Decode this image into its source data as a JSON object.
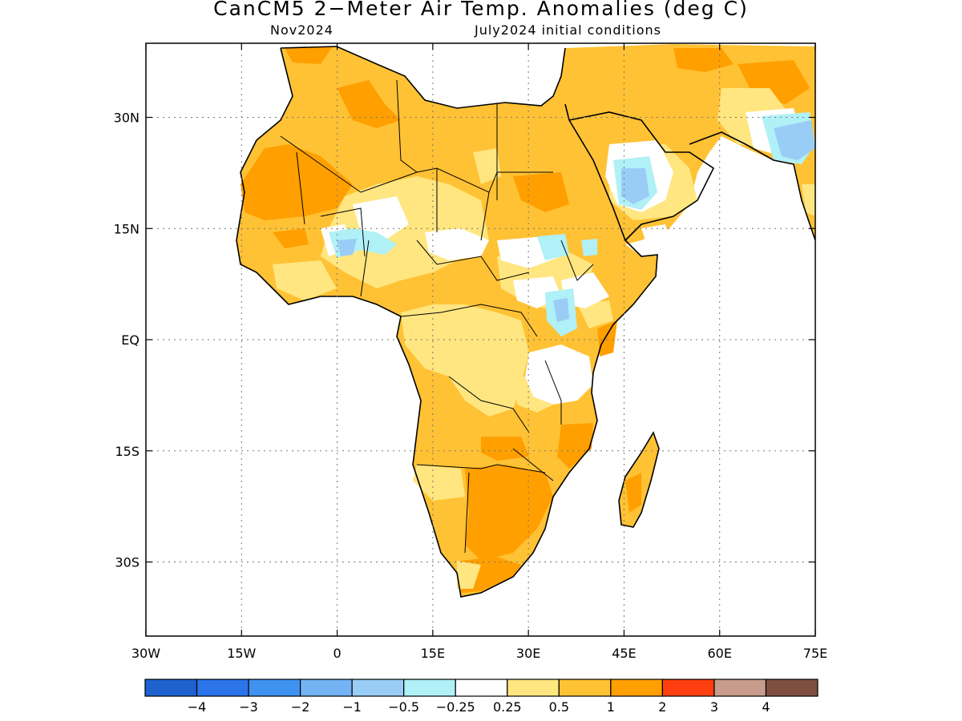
{
  "title": "CanCM5 2−Meter Air Temp. Anomalies (deg C)",
  "subtitle_left": "Nov2024",
  "subtitle_right": "July2024 initial conditions",
  "map": {
    "lon_range": [
      -30,
      75
    ],
    "lat_range": [
      -40,
      40
    ],
    "x_ticks": [
      "30W",
      "15W",
      "0",
      "15E",
      "30E",
      "45E",
      "60E",
      "75E"
    ],
    "y_ticks": [
      "30N",
      "15N",
      "EQ",
      "15S",
      "30S"
    ],
    "grid": "dotted"
  },
  "colorbar": {
    "colors": [
      "#1d62cf",
      "#2b74ea",
      "#3f92f0",
      "#74b3f4",
      "#99cdf6",
      "#b0f0f7",
      "#ffffff",
      "#ffe680",
      "#ffc234",
      "#ff9f00",
      "#ff3f10",
      "#c89c8d",
      "#7e4f40"
    ],
    "labels": [
      "−4",
      "−3",
      "−2",
      "−1",
      "−0.5",
      "−0.25",
      "0.25",
      "0.5",
      "1",
      "2",
      "3",
      "4"
    ]
  }
}
